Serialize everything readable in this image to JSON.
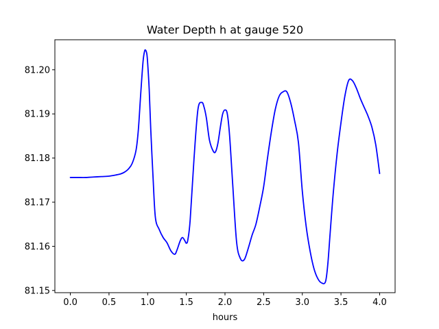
{
  "chart_data": {
    "type": "line",
    "title": "Water Depth h at gauge 520",
    "xlabel": "hours",
    "ylabel": "",
    "xlim": [
      -0.2,
      4.2
    ],
    "ylim": [
      81.1495,
      81.2068
    ],
    "xticks": [
      0.0,
      0.5,
      1.0,
      1.5,
      2.0,
      2.5,
      3.0,
      3.5,
      4.0
    ],
    "xtick_labels": [
      "0.0",
      "0.5",
      "1.0",
      "1.5",
      "2.0",
      "2.5",
      "3.0",
      "3.5",
      "4.0"
    ],
    "yticks": [
      81.15,
      81.16,
      81.17,
      81.18,
      81.19,
      81.2
    ],
    "ytick_labels": [
      "81.15",
      "81.16",
      "81.17",
      "81.18",
      "81.19",
      "81.20"
    ],
    "grid": false,
    "series": [
      {
        "color": "#0000ff",
        "x": [
          0.0,
          0.1,
          0.2,
          0.3,
          0.4,
          0.5,
          0.6,
          0.65,
          0.7,
          0.75,
          0.8,
          0.85,
          0.88,
          0.91,
          0.94,
          0.96,
          0.975,
          0.99,
          1.0,
          1.02,
          1.04,
          1.07,
          1.1,
          1.15,
          1.2,
          1.25,
          1.3,
          1.35,
          1.38,
          1.42,
          1.45,
          1.48,
          1.5,
          1.52,
          1.55,
          1.6,
          1.65,
          1.7,
          1.73,
          1.76,
          1.8,
          1.85,
          1.88,
          1.91,
          1.94,
          1.97,
          2.0,
          2.03,
          2.06,
          2.1,
          2.15,
          2.2,
          2.25,
          2.3,
          2.35,
          2.4,
          2.45,
          2.5,
          2.55,
          2.6,
          2.65,
          2.7,
          2.75,
          2.8,
          2.85,
          2.9,
          2.95,
          3.0,
          3.05,
          3.1,
          3.15,
          3.2,
          3.25,
          3.3,
          3.33,
          3.36,
          3.4,
          3.45,
          3.5,
          3.55,
          3.6,
          3.65,
          3.7,
          3.75,
          3.8,
          3.85,
          3.9,
          3.95,
          4.0
        ],
        "y": [
          81.1756,
          81.1756,
          81.1756,
          81.1757,
          81.1758,
          81.1759,
          81.1762,
          81.1764,
          81.1768,
          81.1775,
          81.1788,
          81.1818,
          81.1865,
          81.1945,
          81.2018,
          81.2042,
          81.2044,
          81.2035,
          81.2015,
          81.1955,
          81.1865,
          81.1755,
          81.1665,
          81.1638,
          81.162,
          81.1608,
          81.159,
          81.1582,
          81.1592,
          81.1612,
          81.162,
          81.1613,
          81.1607,
          81.1615,
          81.166,
          81.18,
          81.191,
          81.1926,
          81.1915,
          81.189,
          81.184,
          81.1815,
          81.1815,
          81.1835,
          81.187,
          81.19,
          81.1909,
          81.19,
          81.185,
          81.174,
          81.161,
          81.1572,
          81.157,
          81.1595,
          81.1625,
          81.165,
          81.169,
          81.1735,
          81.18,
          81.186,
          81.191,
          81.194,
          81.195,
          81.195,
          81.1925,
          81.1885,
          81.1835,
          81.1725,
          81.1645,
          81.159,
          81.155,
          81.1527,
          81.1517,
          81.152,
          81.156,
          81.163,
          81.172,
          81.181,
          81.188,
          81.194,
          81.1976,
          81.1975,
          81.1958,
          81.1935,
          81.1915,
          81.1895,
          81.187,
          81.183,
          81.1765
        ]
      }
    ]
  }
}
